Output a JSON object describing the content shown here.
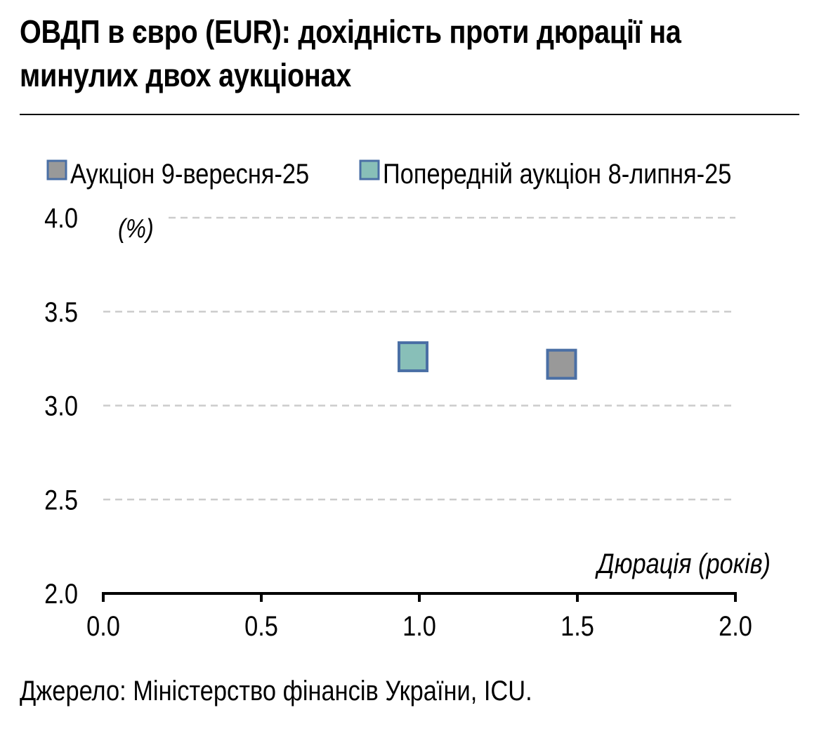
{
  "title": "ОВДП в євро (EUR): дохідність проти дюрації на минулих двох аукціонах",
  "source": "Джерело: Міністерство фінансів України, ICU.",
  "colors": {
    "current_fill": "#999999",
    "previous_fill": "#88bfb8",
    "marker_border": "#4a6fa5",
    "grid": "#cccccc",
    "axis": "#000000"
  },
  "chart_data": {
    "type": "scatter",
    "xlabel": "Дюрація (років)",
    "ylabel": "(%)",
    "xlim": [
      0.0,
      2.0
    ],
    "ylim": [
      2.0,
      4.0
    ],
    "x_ticks": [
      "0.0",
      "0.5",
      "1.0",
      "1.5",
      "2.0"
    ],
    "y_ticks": [
      "2.0",
      "2.5",
      "3.0",
      "3.5",
      "4.0"
    ],
    "grid": "horizontal dashed",
    "legend_position": "top",
    "series": [
      {
        "name": "Аукціон 9-вересня-25",
        "color": "#999999",
        "points": [
          {
            "x": 1.45,
            "y": 3.22
          }
        ]
      },
      {
        "name": "Попередній аукціон 8-липня-25",
        "color": "#88bfb8",
        "points": [
          {
            "x": 0.98,
            "y": 3.26
          }
        ]
      }
    ]
  }
}
